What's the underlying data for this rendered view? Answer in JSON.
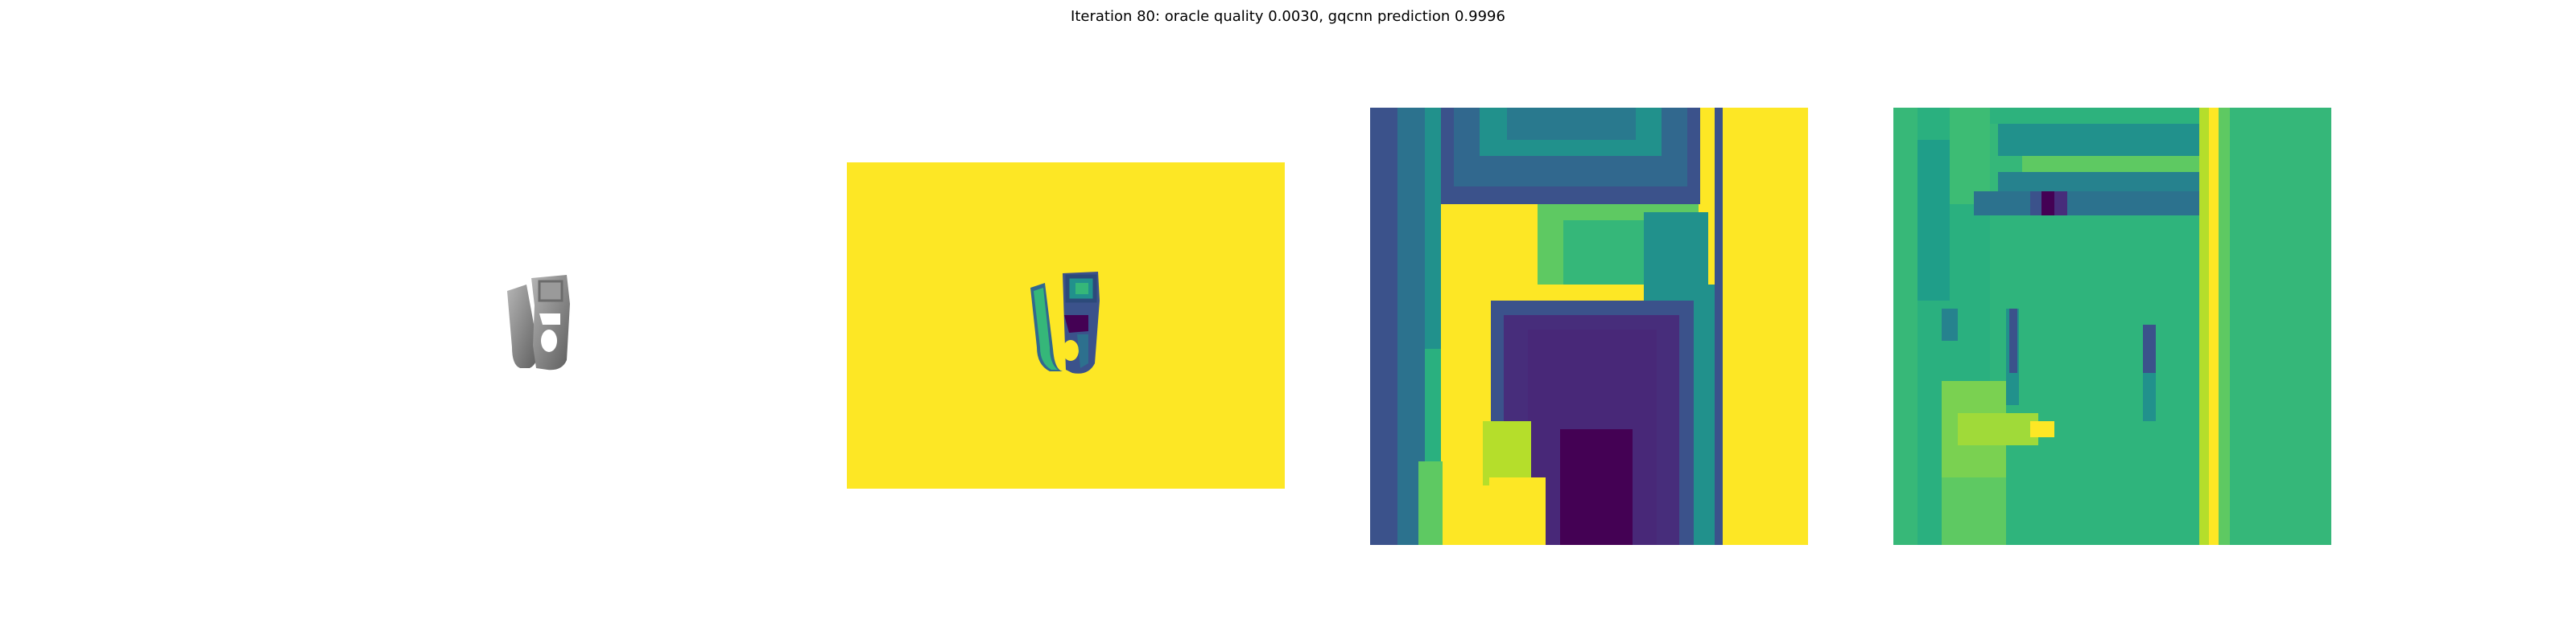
{
  "figure": {
    "title": "Iteration 80: oracle quality 0.0030, gqcnn prediction 0.9996"
  },
  "colors": {
    "background": "#ffffff",
    "viridis_yellow": "#fde725",
    "viridis_green": "#35b779",
    "viridis_teal": "#21918c",
    "viridis_blue": "#3b528b",
    "viridis_purple": "#440154",
    "object_gray": "#8a8a8a"
  },
  "panels": [
    {
      "id": "rgb-render",
      "kind": "rendered object image"
    },
    {
      "id": "depth-image",
      "kind": "depth image, viridis colormap"
    },
    {
      "id": "cropped-depth",
      "kind": "cropped depth patch, viridis colormap"
    },
    {
      "id": "cropped-gradient",
      "kind": "cropped patch, viridis colormap"
    }
  ]
}
